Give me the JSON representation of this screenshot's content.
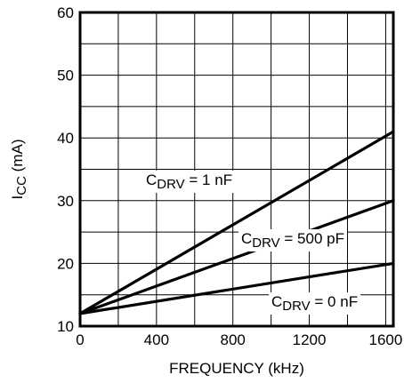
{
  "chart_data": {
    "type": "line",
    "title": "",
    "xlabel": "FREQUENCY (kHz)",
    "ylabel": {
      "main": "I",
      "sub": "CC",
      "unit": " (mA)"
    },
    "xlim": [
      0,
      1640
    ],
    "ylim": [
      10,
      60
    ],
    "xticks": [
      0,
      400,
      800,
      1200,
      1600
    ],
    "yticks": [
      10,
      20,
      30,
      40,
      50,
      60
    ],
    "grid": true,
    "legend": "none (inline series labels)",
    "series": [
      {
        "name": "C_DRV = 1 nF",
        "label": {
          "main": "C",
          "sub": "DRV",
          "rest": " = 1 nF"
        },
        "x": [
          0,
          1640
        ],
        "y": [
          12,
          41
        ]
      },
      {
        "name": "C_DRV = 500 pF",
        "label": {
          "main": "C",
          "sub": "DRV",
          "rest": " = 500 pF"
        },
        "x": [
          0,
          1640
        ],
        "y": [
          12,
          30
        ]
      },
      {
        "name": "C_DRV = 0 nF",
        "label": {
          "main": "C",
          "sub": "DRV",
          "rest": " = 0 nF"
        },
        "x": [
          0,
          1640
        ],
        "y": [
          12,
          20
        ]
      }
    ],
    "colors": {
      "line": "#000000",
      "grid": "#000000",
      "background": "#ffffff"
    }
  }
}
